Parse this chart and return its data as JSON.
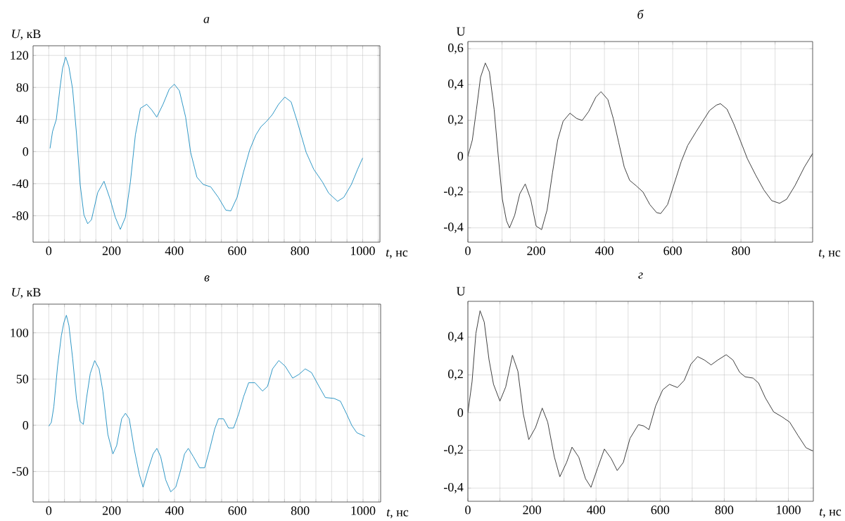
{
  "chart_data": [
    {
      "type": "line",
      "title": "а",
      "xlabel": "*t*, нс",
      "ylabel": "*U*, кВ",
      "color": "#1a8cc0",
      "grid": true,
      "xlim": [
        -50,
        1055
      ],
      "ylim": [
        -113,
        132
      ],
      "xticks": [
        0,
        {
          "value": 50,
          "label": null
        },
        {
          "value": 100,
          "label": null
        },
        {
          "value": 150,
          "label": null
        },
        200,
        {
          "value": 250,
          "label": null
        },
        {
          "value": 300,
          "label": null
        },
        {
          "value": 350,
          "label": null
        },
        400,
        {
          "value": 450,
          "label": null
        },
        {
          "value": 500,
          "label": null
        },
        {
          "value": 550,
          "label": null
        },
        600,
        {
          "value": 650,
          "label": null
        },
        {
          "value": 700,
          "label": null
        },
        {
          "value": 750,
          "label": null
        },
        800,
        {
          "value": 850,
          "label": null
        },
        {
          "value": 900,
          "label": null
        },
        {
          "value": 950,
          "label": null
        },
        1000,
        {
          "value": 1050,
          "label": null
        }
      ],
      "yticks": [
        -80,
        -40,
        0,
        40,
        80,
        120
      ],
      "x": [
        4,
        12,
        24,
        36,
        44,
        54,
        64,
        76,
        88,
        100,
        112,
        124,
        136,
        156,
        176,
        196,
        212,
        228,
        244,
        260,
        276,
        292,
        312,
        328,
        344,
        364,
        384,
        400,
        416,
        436,
        452,
        472,
        492,
        516,
        540,
        564,
        580,
        600,
        620,
        640,
        660,
        676,
        692,
        712,
        732,
        752,
        772,
        792,
        820,
        844,
        872,
        892,
        920,
        940,
        964,
        984,
        1000
      ],
      "values": [
        4,
        25,
        40,
        80,
        104,
        118,
        106,
        78,
        24,
        -41,
        -79,
        -90,
        -85,
        -51,
        -37,
        -60,
        -82,
        -97,
        -82,
        -38,
        21,
        54,
        59,
        52,
        43,
        59,
        78,
        84,
        76,
        43,
        -1,
        -32,
        -41,
        -44,
        -57,
        -73,
        -74,
        -57,
        -26,
        2,
        21,
        31,
        37,
        46,
        59,
        68,
        62,
        37,
        -1,
        -22,
        -38,
        -52,
        -62,
        -57,
        -41,
        -22,
        -8
      ]
    },
    {
      "type": "line",
      "title": "б",
      "xlabel": "*t*, нс",
      "ylabel": "U",
      "color": "#2b2b2b",
      "grid": true,
      "xlim": [
        0,
        1010
      ],
      "ylim": [
        -0.48,
        0.64
      ],
      "xticks": [
        0,
        {
          "value": 100,
          "label": null
        },
        200,
        {
          "value": 300,
          "label": null
        },
        400,
        {
          "value": 500,
          "label": null
        },
        600,
        {
          "value": 700,
          "label": null
        },
        800,
        {
          "value": 900,
          "label": null
        }
      ],
      "yticks": [
        {
          "value": -0.4,
          "label": "-0,4"
        },
        {
          "value": -0.2,
          "label": "-0,2"
        },
        0,
        {
          "value": 0.2,
          "label": "0,2"
        },
        {
          "value": 0.4,
          "label": "0,4"
        },
        {
          "value": 0.6,
          "label": "0,6"
        }
      ],
      "x": [
        0,
        13,
        25,
        37,
        51,
        63,
        77,
        89,
        101,
        113,
        122,
        137,
        152,
        168,
        184,
        200,
        216,
        232,
        248,
        263,
        279,
        299,
        319,
        335,
        354,
        375,
        390,
        410,
        426,
        442,
        458,
        474,
        493,
        513,
        533,
        553,
        565,
        585,
        605,
        625,
        644,
        668,
        688,
        708,
        728,
        740,
        759,
        779,
        799,
        819,
        843,
        867,
        890,
        913,
        934,
        958,
        986,
        1010
      ],
      "values": [
        0,
        0.09,
        0.26,
        0.44,
        0.52,
        0.47,
        0.26,
        0,
        -0.24,
        -0.36,
        -0.4,
        -0.33,
        -0.21,
        -0.155,
        -0.24,
        -0.39,
        -0.41,
        -0.3,
        -0.09,
        0.09,
        0.195,
        0.24,
        0.21,
        0.2,
        0.25,
        0.33,
        0.36,
        0.316,
        0.21,
        0.075,
        -0.06,
        -0.135,
        -0.165,
        -0.2,
        -0.27,
        -0.315,
        -0.32,
        -0.27,
        -0.15,
        -0.03,
        0.06,
        0.135,
        0.195,
        0.255,
        0.285,
        0.293,
        0.263,
        0.18,
        0.083,
        -0.015,
        -0.105,
        -0.188,
        -0.248,
        -0.263,
        -0.24,
        -0.165,
        -0.06,
        0.015
      ]
    },
    {
      "type": "line",
      "title": "в",
      "xlabel": "*t*, нс",
      "ylabel": "*U*, кВ",
      "color": "#1a8cc0",
      "grid": true,
      "xlim": [
        -50,
        1056
      ],
      "ylim": [
        -83,
        131
      ],
      "xticks": [
        0,
        {
          "value": 50,
          "label": null
        },
        {
          "value": 100,
          "label": null
        },
        {
          "value": 150,
          "label": null
        },
        200,
        {
          "value": 250,
          "label": null
        },
        {
          "value": 300,
          "label": null
        },
        {
          "value": 350,
          "label": null
        },
        400,
        {
          "value": 450,
          "label": null
        },
        {
          "value": 500,
          "label": null
        },
        {
          "value": 550,
          "label": null
        },
        600,
        {
          "value": 650,
          "label": null
        },
        {
          "value": 700,
          "label": null
        },
        {
          "value": 750,
          "label": null
        },
        800,
        {
          "value": 850,
          "label": null
        },
        {
          "value": 900,
          "label": null
        },
        {
          "value": 950,
          "label": null
        },
        1000,
        {
          "value": 1050,
          "label": null
        }
      ],
      "yticks": [
        -50,
        0,
        50,
        100
      ],
      "x": [
        0,
        8,
        16,
        28,
        40,
        48,
        56,
        64,
        76,
        88,
        100,
        110,
        120,
        132,
        146,
        160,
        172,
        188,
        204,
        216,
        232,
        244,
        256,
        272,
        288,
        300,
        316,
        332,
        344,
        356,
        372,
        388,
        404,
        420,
        432,
        444,
        460,
        480,
        496,
        512,
        528,
        540,
        556,
        572,
        588,
        604,
        620,
        636,
        656,
        680,
        696,
        712,
        732,
        752,
        776,
        796,
        816,
        836,
        860,
        880,
        908,
        928,
        948,
        964,
        980,
        1006
      ],
      "values": [
        -1,
        3,
        20,
        64,
        97,
        111,
        119,
        108,
        72,
        29,
        4,
        1,
        29,
        56,
        70,
        61,
        37,
        -10,
        -31,
        -22,
        7,
        13,
        7,
        -26,
        -53,
        -67,
        -48,
        -31,
        -25,
        -34,
        -59,
        -72,
        -67,
        -48,
        -31,
        -25,
        -34,
        -46,
        -46,
        -26,
        -4,
        7,
        7,
        -3,
        -3,
        12,
        31,
        46,
        46,
        37,
        42,
        61,
        70,
        64,
        51,
        55,
        61,
        57,
        42,
        30,
        29,
        26,
        12,
        0,
        -8,
        -12
      ]
    },
    {
      "type": "line",
      "title": "г",
      "xlabel": "*t*, нс",
      "ylabel": "U",
      "color": "#2b2b2b",
      "grid": true,
      "xlim": [
        0,
        1078
      ],
      "ylim": [
        -0.47,
        0.59
      ],
      "xticks": [
        0,
        {
          "value": 100,
          "label": null
        },
        200,
        {
          "value": 300,
          "label": null
        },
        400,
        {
          "value": 500,
          "label": null
        },
        600,
        {
          "value": 700,
          "label": null
        },
        800,
        {
          "value": 900,
          "label": null
        },
        1000
      ],
      "yticks": [
        {
          "value": -0.4,
          "label": "-0,4"
        },
        {
          "value": -0.2,
          "label": "-0,2"
        },
        0,
        {
          "value": 0.2,
          "label": "0,2"
        },
        {
          "value": 0.4,
          "label": "0,4"
        }
      ],
      "x": [
        0,
        13,
        25,
        38,
        51,
        66,
        80,
        100,
        118,
        139,
        156,
        173,
        190,
        211,
        232,
        249,
        270,
        287,
        308,
        325,
        346,
        367,
        384,
        405,
        426,
        447,
        466,
        485,
        506,
        532,
        549,
        565,
        586,
        608,
        629,
        654,
        675,
        696,
        717,
        738,
        759,
        780,
        806,
        827,
        848,
        865,
        890,
        907,
        928,
        954,
        979,
        1004,
        1030,
        1055,
        1076
      ],
      "values": [
        0,
        0.164,
        0.42,
        0.54,
        0.48,
        0.28,
        0.15,
        0.061,
        0.136,
        0.304,
        0.22,
        -0.007,
        -0.143,
        -0.079,
        0.024,
        -0.05,
        -0.236,
        -0.34,
        -0.264,
        -0.183,
        -0.236,
        -0.35,
        -0.396,
        -0.293,
        -0.193,
        -0.243,
        -0.307,
        -0.264,
        -0.136,
        -0.064,
        -0.071,
        -0.09,
        0.036,
        0.121,
        0.15,
        0.133,
        0.171,
        0.257,
        0.297,
        0.279,
        0.253,
        0.279,
        0.307,
        0.279,
        0.214,
        0.19,
        0.183,
        0.157,
        0.079,
        0.004,
        -0.021,
        -0.05,
        -0.121,
        -0.186,
        -0.203
      ]
    }
  ]
}
